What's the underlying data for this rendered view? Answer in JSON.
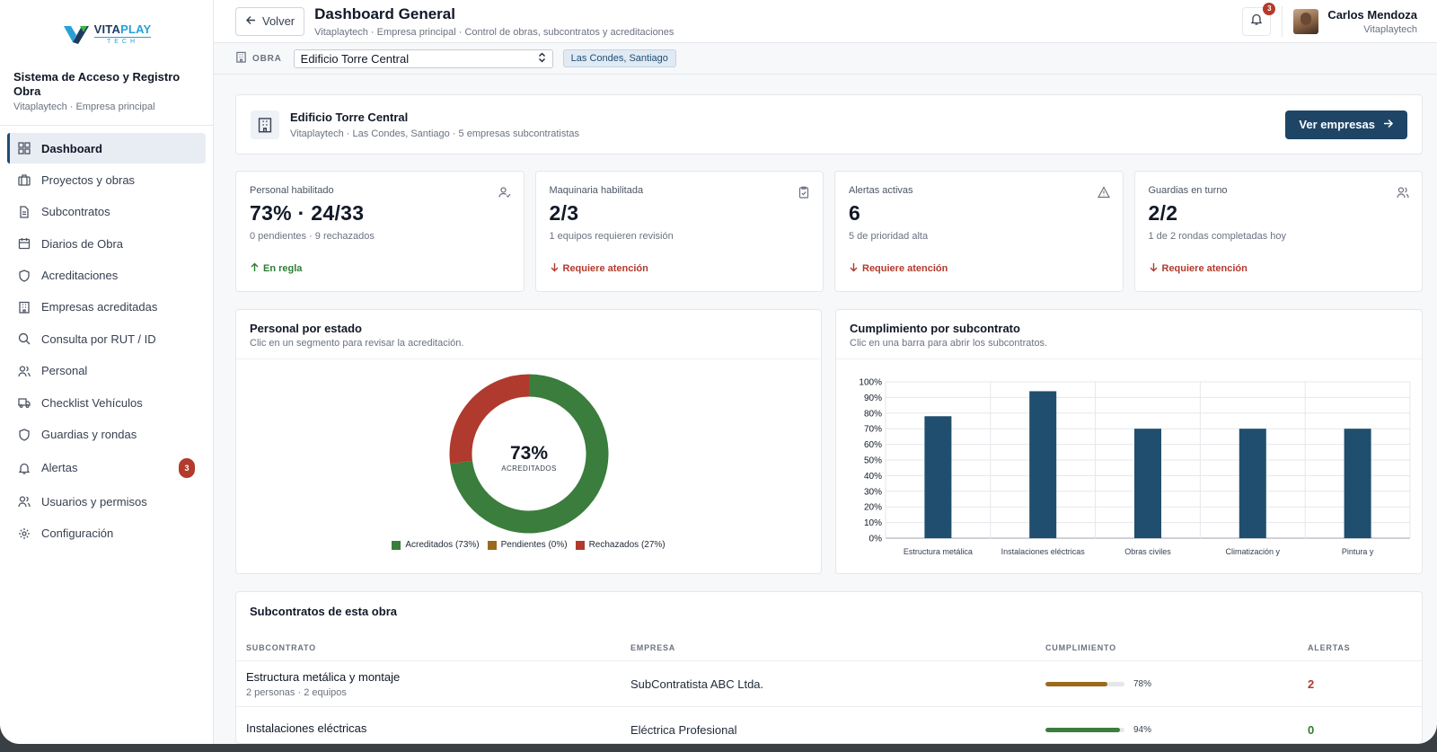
{
  "brand": {
    "name_a": "VITA",
    "name_b": "PLAY",
    "name_sub": "TECH"
  },
  "sidebar": {
    "system_title": "Sistema de Acceso y Registro Obra",
    "system_sub": "Vitaplaytech · Empresa principal",
    "items": [
      {
        "label": "Dashboard",
        "icon": "dashboard-icon"
      },
      {
        "label": "Proyectos y obras",
        "icon": "briefcase-icon"
      },
      {
        "label": "Subcontratos",
        "icon": "document-icon"
      },
      {
        "label": "Diarios de Obra",
        "icon": "calendar-icon"
      },
      {
        "label": "Acreditaciones",
        "icon": "shield-icon"
      },
      {
        "label": "Empresas acreditadas",
        "icon": "building-icon"
      },
      {
        "label": "Consulta por RUT / ID",
        "icon": "search-icon"
      },
      {
        "label": "Personal",
        "icon": "users-icon"
      },
      {
        "label": "Checklist Vehículos",
        "icon": "truck-icon"
      },
      {
        "label": "Guardias y rondas",
        "icon": "shield-icon"
      },
      {
        "label": "Alertas",
        "icon": "bell-icon",
        "badge": "3"
      },
      {
        "label": "Usuarios y permisos",
        "icon": "users-icon"
      },
      {
        "label": "Configuración",
        "icon": "gear-icon"
      }
    ]
  },
  "header": {
    "back_label": "Volver",
    "title": "Dashboard General",
    "subtitle": "Vitaplaytech · Empresa principal · Control de obras, subcontratos y acreditaciones",
    "notif_count": "3",
    "user_name": "Carlos Mendoza",
    "user_org": "Vitaplaytech"
  },
  "obra_bar": {
    "label": "OBRA",
    "selected": "Edificio Torre Central",
    "location": "Las Condes, Santiago"
  },
  "obra_card": {
    "name": "Edificio Torre Central",
    "meta": "Vitaplaytech · Las Condes, Santiago · 5 empresas subcontratistas",
    "button": "Ver empresas"
  },
  "stats": [
    {
      "label": "Personal habilitado",
      "value": "73% · 24/33",
      "sub": "0 pendientes · 9 rechazados",
      "trend": "En regla",
      "trend_type": "ok",
      "icon": "user-check-icon"
    },
    {
      "label": "Maquinaria habilitada",
      "value": "2/3",
      "sub": "1 equipos requieren revisión",
      "trend": "Requiere atención",
      "trend_type": "bad",
      "icon": "clipboard-check-icon"
    },
    {
      "label": "Alertas activas",
      "value": "6",
      "sub": "5 de prioridad alta",
      "trend": "Requiere atención",
      "trend_type": "bad",
      "icon": "warning-icon"
    },
    {
      "label": "Guardias en turno",
      "value": "2/2",
      "sub": "1 de 2 rondas completadas hoy",
      "trend": "Requiere atención",
      "trend_type": "bad",
      "icon": "users-icon"
    }
  ],
  "donut_card": {
    "title": "Personal por estado",
    "subtitle": "Clic en un segmento para revisar la acreditación.",
    "center_value": "73%",
    "center_label": "ACREDITADOS"
  },
  "bar_card": {
    "title": "Cumplimiento por subcontrato",
    "subtitle": "Clic en una barra para abrir los subcontratos."
  },
  "chart_data": [
    {
      "type": "pie",
      "categories": [
        "Acreditados (73%)",
        "Pendientes (0%)",
        "Rechazados (27%)"
      ],
      "values": [
        73,
        0,
        27
      ],
      "colors": [
        "#3a7d3c",
        "#9a6a1e",
        "#b03a2e"
      ],
      "legend": "bottom"
    },
    {
      "type": "bar",
      "categories": [
        "Estructura metálica",
        "Instalaciones eléctricas",
        "Obras civiles",
        "Climatización y",
        "Pintura y"
      ],
      "values": [
        78,
        94,
        70,
        70,
        70
      ],
      "ylim": [
        0,
        100
      ],
      "yticks": [
        "0%",
        "10%",
        "20%",
        "30%",
        "40%",
        "50%",
        "60%",
        "70%",
        "80%",
        "90%",
        "100%"
      ],
      "grid": true,
      "color": "#1f4e6e"
    }
  ],
  "table": {
    "title": "Subcontratos de esta obra",
    "headers": [
      "SUBCONTRATO",
      "EMPRESA",
      "CUMPLIMIENTO",
      "ALERTAS"
    ],
    "rows": [
      {
        "name": "Estructura metálica y montaje",
        "meta": "2 personas · 2 equipos",
        "empresa": "SubContratista ABC Ltda.",
        "cumplimiento": 78,
        "cumplimiento_label": "78%",
        "bar_color": "#9a6a1e",
        "alertas": "2",
        "alert_type": "red"
      },
      {
        "name": "Instalaciones eléctricas",
        "meta": "",
        "empresa": "Eléctrica Profesional",
        "cumplimiento": 94,
        "cumplimiento_label": "94%",
        "bar_color": "#3a7d3c",
        "alertas": "0",
        "alert_type": "green"
      }
    ]
  }
}
